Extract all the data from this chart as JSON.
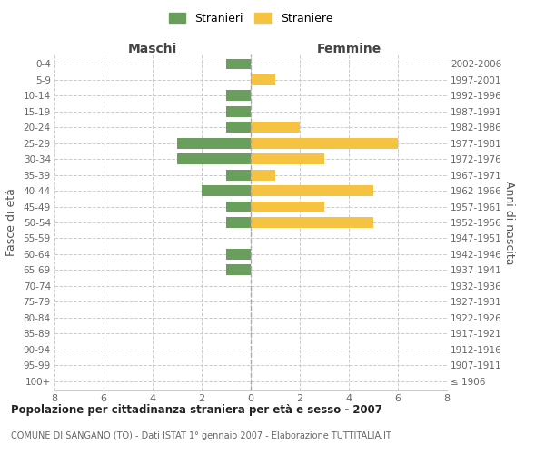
{
  "age_groups": [
    "100+",
    "95-99",
    "90-94",
    "85-89",
    "80-84",
    "75-79",
    "70-74",
    "65-69",
    "60-64",
    "55-59",
    "50-54",
    "45-49",
    "40-44",
    "35-39",
    "30-34",
    "25-29",
    "20-24",
    "15-19",
    "10-14",
    "5-9",
    "0-4"
  ],
  "birth_years": [
    "≤ 1906",
    "1907-1911",
    "1912-1916",
    "1917-1921",
    "1922-1926",
    "1927-1931",
    "1932-1936",
    "1937-1941",
    "1942-1946",
    "1947-1951",
    "1952-1956",
    "1957-1961",
    "1962-1966",
    "1967-1971",
    "1972-1976",
    "1977-1981",
    "1982-1986",
    "1987-1991",
    "1992-1996",
    "1997-2001",
    "2002-2006"
  ],
  "males": [
    0,
    0,
    0,
    0,
    0,
    0,
    0,
    1,
    1,
    0,
    1,
    1,
    2,
    1,
    3,
    3,
    1,
    1,
    1,
    0,
    1
  ],
  "females": [
    0,
    0,
    0,
    0,
    0,
    0,
    0,
    0,
    0,
    0,
    5,
    3,
    5,
    1,
    3,
    6,
    2,
    0,
    0,
    1,
    0
  ],
  "color_male": "#6a9e5c",
  "color_female": "#f5c242",
  "title": "Popolazione per cittadinanza straniera per età e sesso - 2007",
  "subtitle": "COMUNE DI SANGANO (TO) - Dati ISTAT 1° gennaio 2007 - Elaborazione TUTTITALIA.IT",
  "ylabel_left": "Fasce di età",
  "ylabel_right": "Anni di nascita",
  "header_left": "Maschi",
  "header_right": "Femmine",
  "legend_male": "Stranieri",
  "legend_female": "Straniere",
  "xlim": 8,
  "background_color": "#ffffff",
  "grid_color": "#cccccc"
}
